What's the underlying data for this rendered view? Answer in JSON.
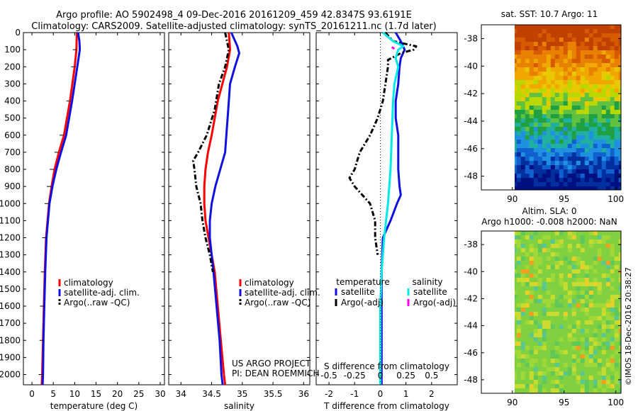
{
  "header": {
    "line1": "Argo profile: AO 5902498_4 09-Dec-2016 20161209_459 42.8347S 93.6191E",
    "line2": "Climatology: CARS2009. Satellite-adjusted climatology: synTS_20161211.nc (1.7d later)"
  },
  "colors": {
    "climatology": "#ff0000",
    "satellite": "#1010e0",
    "argo": "#000000",
    "sal_satellite": "#00e8e8",
    "sal_argo": "#ff00ff"
  },
  "chart_data": [
    {
      "type": "line",
      "name": "temperature-profile",
      "xlabel": "temperature (deg C)",
      "xlim": [
        -2,
        31
      ],
      "ylim": [
        2060,
        0
      ],
      "xticks": [
        0,
        5,
        10,
        15,
        20,
        25,
        30
      ],
      "yticks": [
        0,
        100,
        200,
        300,
        400,
        500,
        600,
        700,
        800,
        900,
        1000,
        1100,
        1200,
        1300,
        1400,
        1500,
        1600,
        1700,
        1800,
        1900,
        2000
      ],
      "legend": [
        "climatology",
        "satellite-adj. clim.",
        "Argo(..raw -QC)"
      ],
      "legend_position": "lower-right",
      "series": [
        {
          "name": "climatology",
          "color": "#ff0000",
          "depth": [
            0,
            100,
            200,
            400,
            600,
            700,
            800,
            900,
            1000,
            1200,
            1400,
            1600,
            1800,
            2000,
            2060
          ],
          "values": [
            10.5,
            10.4,
            10.0,
            8.9,
            7.5,
            6.3,
            5.3,
            4.6,
            4.0,
            3.3,
            3.0,
            2.8,
            2.6,
            2.4,
            2.3
          ]
        },
        {
          "name": "satellite-adj. clim.",
          "color": "#1010e0",
          "depth": [
            0,
            50,
            100,
            200,
            400,
            600,
            700,
            800,
            900,
            1000,
            1200,
            1400,
            1600,
            1800,
            2000,
            2060
          ],
          "values": [
            10.8,
            11.1,
            11.2,
            10.6,
            9.4,
            8.0,
            6.8,
            5.7,
            4.8,
            4.1,
            3.4,
            3.1,
            2.9,
            2.7,
            2.6,
            2.5
          ]
        },
        {
          "name": "Argo(..raw -QC)",
          "color": "#000000",
          "style": "ticks",
          "depth": [
            0,
            100,
            200,
            400,
            600,
            700,
            800,
            900,
            1000,
            1200,
            1400,
            1600,
            1800,
            2000
          ],
          "values": [
            10.5,
            10.4,
            10.0,
            8.9,
            7.3,
            6.1,
            5.0,
            4.3,
            3.8,
            3.2,
            2.9,
            2.7,
            2.6,
            2.4
          ]
        }
      ]
    },
    {
      "type": "line",
      "name": "salinity-profile",
      "xlabel": "salinity",
      "xlim": [
        33.8,
        36.1
      ],
      "ylim": [
        2060,
        0
      ],
      "xticks": [
        34,
        34.5,
        35,
        35.5,
        36
      ],
      "legend": [
        "climatology",
        "satellite-adj. clim.",
        "Argo(..raw -QC)"
      ],
      "legend_position": "lower-right",
      "annotation": [
        "US ARGO PROJECT",
        "PI: DEAN ROEMMICH"
      ],
      "series": [
        {
          "name": "climatology",
          "color": "#ff0000",
          "depth": [
            0,
            100,
            200,
            400,
            600,
            700,
            800,
            900,
            1000,
            1100,
            1200,
            1300,
            1400,
            1600,
            1800,
            2000,
            2060
          ],
          "values": [
            34.78,
            34.8,
            34.75,
            34.6,
            34.5,
            34.44,
            34.4,
            34.38,
            34.38,
            34.4,
            34.45,
            34.5,
            34.55,
            34.6,
            34.65,
            34.7,
            34.72
          ]
        },
        {
          "name": "satellite-adj. clim.",
          "color": "#1010e0",
          "depth": [
            0,
            80,
            120,
            200,
            300,
            400,
            500,
            600,
            700,
            800,
            900,
            1000,
            1100,
            1200,
            1300,
            1400,
            1600,
            1800,
            2000,
            2060
          ],
          "values": [
            34.82,
            34.92,
            34.95,
            34.88,
            34.8,
            34.78,
            34.76,
            34.74,
            34.72,
            34.64,
            34.56,
            34.5,
            34.47,
            34.47,
            34.5,
            34.53,
            34.58,
            34.63,
            34.66,
            34.68
          ]
        },
        {
          "name": "Argo(..raw -QC)",
          "color": "#000000",
          "style": "dashdot",
          "depth": [
            0,
            50,
            100,
            200,
            300,
            450,
            600,
            700,
            750,
            800,
            900,
            1000,
            1100,
            1200,
            1300,
            1400
          ],
          "values": [
            34.72,
            34.75,
            34.78,
            34.72,
            34.62,
            34.55,
            34.42,
            34.28,
            34.2,
            34.22,
            34.25,
            34.32,
            34.35,
            34.4,
            34.47,
            34.52
          ]
        }
      ]
    },
    {
      "type": "line",
      "name": "difference-profile",
      "xlabel": "T difference from climatology",
      "xlabel2": "S difference from climatology",
      "xlim": [
        -2.5,
        3
      ],
      "ylim": [
        2060,
        0
      ],
      "xticks": [
        -2,
        -1,
        0,
        1,
        2
      ],
      "xticks_top": [
        "-0.5",
        "-0.25",
        "0",
        "0.25",
        "0.5"
      ],
      "legend_title_left": "temperature",
      "legend_title_right": "salinity",
      "legend": [
        "satellite",
        "Argo(-adj)",
        "satellite",
        "Argo(-adj)"
      ],
      "series": [
        {
          "name": "satellite",
          "group": "temperature",
          "color": "#1010e0",
          "depth": [
            0,
            50,
            100,
            150,
            200,
            300,
            400,
            500,
            600,
            700,
            800,
            900,
            950,
            1000,
            1100,
            1200,
            1400,
            1600,
            1800,
            2000,
            2060
          ],
          "values": [
            0.6,
            0.8,
            0.95,
            0.8,
            0.75,
            0.7,
            0.6,
            0.6,
            0.7,
            0.7,
            0.7,
            0.75,
            0.8,
            0.65,
            0.4,
            0.1,
            0.05,
            0.05,
            0.05,
            0.05,
            0.05
          ]
        },
        {
          "name": "Argo(-adj)",
          "group": "temperature",
          "color": "#000000",
          "style": "dashdot",
          "depth": [
            0,
            50,
            80,
            100,
            120,
            160,
            200,
            400,
            500,
            600,
            700,
            800,
            850,
            900,
            1000,
            1100,
            1200,
            1300
          ],
          "values": [
            0.2,
            0.5,
            1.4,
            1.3,
            0.8,
            0.3,
            0.3,
            0.1,
            -0.1,
            -0.4,
            -0.8,
            -1.0,
            -1.2,
            -1.0,
            -0.4,
            -0.2,
            -0.2,
            -0.1
          ]
        },
        {
          "name": "satellite",
          "group": "salinity",
          "color": "#00e8e8",
          "depth": [
            0,
            50,
            80,
            100,
            150,
            200,
            300,
            400,
            600,
            800,
            1000,
            1200,
            1400,
            1600,
            1800,
            2000,
            2060
          ],
          "values": [
            0.1,
            0.5,
            0.9,
            0.7,
            0.6,
            0.7,
            0.55,
            0.5,
            0.45,
            0.4,
            0.3,
            0.15,
            0.05,
            0.0,
            0.0,
            0.0,
            0.0
          ]
        },
        {
          "name": "Argo(-adj)",
          "group": "salinity",
          "color": "#ff00ff",
          "depth": [
            85,
            95
          ],
          "values": [
            0.45,
            0.55
          ]
        }
      ]
    },
    {
      "type": "heatmap",
      "name": "sst-map",
      "title": "sat. SST: 10.7 Argo: 11",
      "xlim": [
        87,
        100.5
      ],
      "ylim": [
        -49,
        -37
      ],
      "xticks": [
        90,
        95,
        100
      ],
      "yticks": [
        -38,
        -40,
        -42,
        -44,
        -46,
        -48
      ],
      "colormap": "jet"
    },
    {
      "type": "heatmap",
      "name": "sla-map",
      "title": "Altim. SLA: 0",
      "subtitle": "Argo h1000: -0.008 h2000: NaN",
      "xlim": [
        87,
        100.5
      ],
      "ylim": [
        -49,
        -37
      ],
      "xticks": [
        90,
        95,
        100
      ],
      "yticks": [
        -38,
        -40,
        -42,
        -44,
        -46,
        -48
      ],
      "colormap": "jet"
    }
  ],
  "footer": {
    "stamp": "©IMOS 18-Dec-2016 20:38:27"
  }
}
